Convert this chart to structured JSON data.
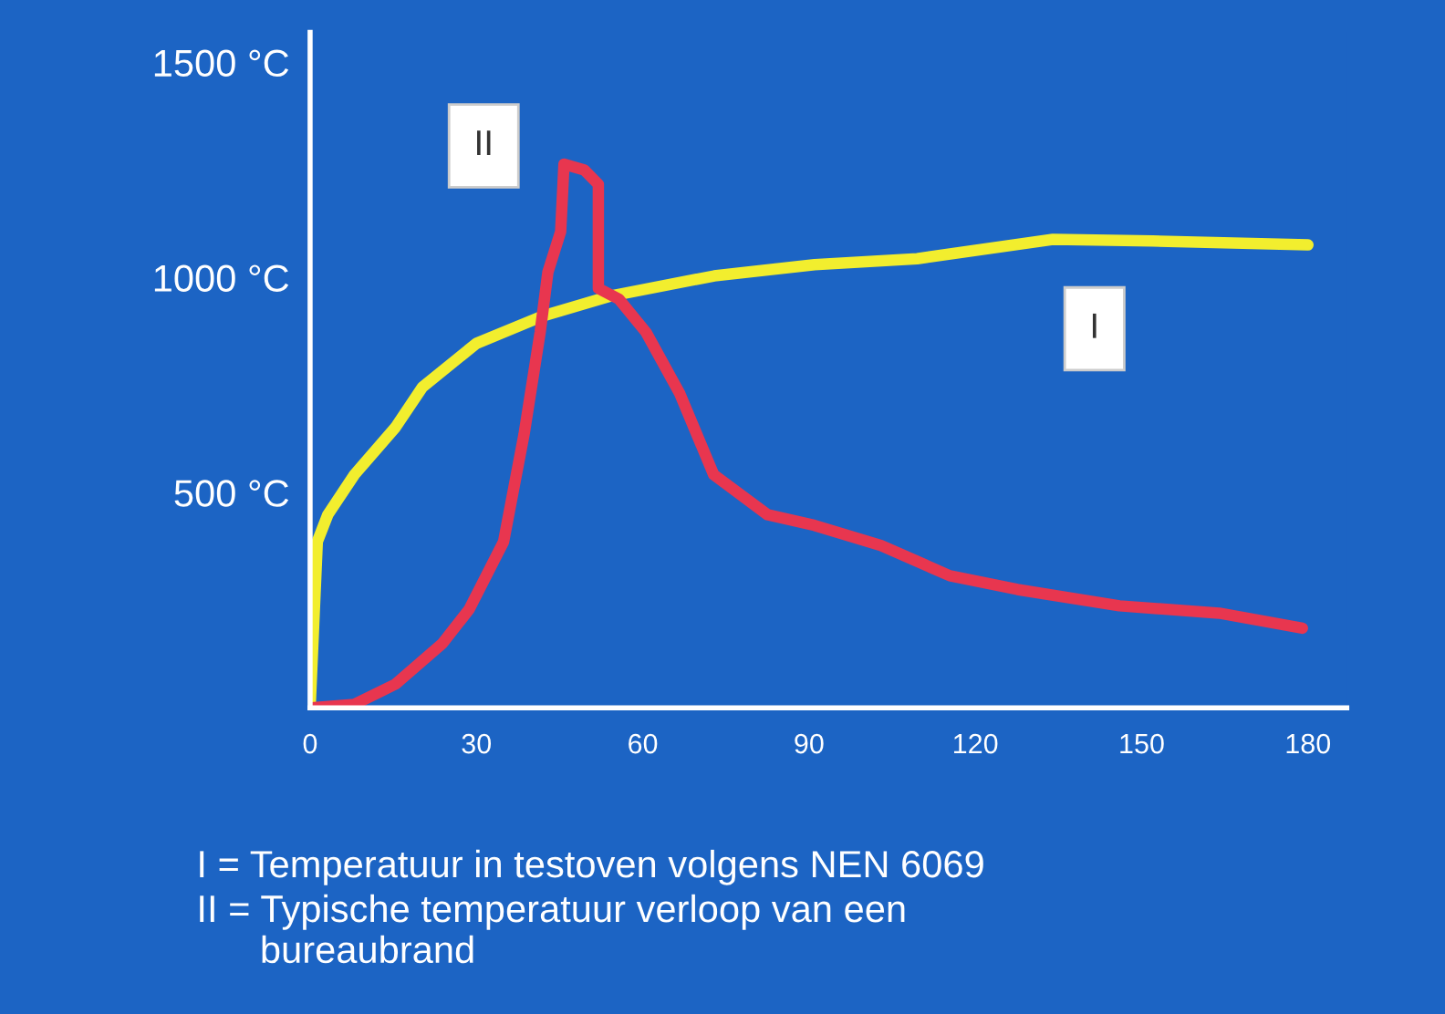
{
  "chart_data": {
    "type": "line",
    "xlim": [
      0,
      187
    ],
    "ylim": [
      0,
      1570
    ],
    "xticks": [
      0,
      30,
      60,
      90,
      120,
      150,
      180
    ],
    "yticks": [
      {
        "value": 500,
        "label": "500 °C"
      },
      {
        "value": 1000,
        "label": "1000 °C"
      },
      {
        "value": 1500,
        "label": "1500 °C"
      }
    ],
    "grid": false,
    "marker": "none",
    "line_style": "solid",
    "series": [
      {
        "name": "I",
        "color": "#f2ee2e",
        "x": [
          0,
          1.3,
          3.2,
          8,
          15.4,
          20.3,
          30,
          42,
          54.4,
          72.9,
          91,
          109.5,
          134,
          152,
          180
        ],
        "values": [
          0,
          386,
          449,
          542,
          652,
          746,
          847,
          911,
          958,
          1004,
          1030,
          1044,
          1089,
          1085,
          1076
        ]
      },
      {
        "name": "II",
        "color": "#e8364f",
        "x": [
          0.2,
          8,
          15.4,
          23.9,
          28.7,
          34.9,
          38.6,
          41.5,
          42.9,
          45.2,
          45.8,
          49.5,
          52,
          52,
          55.7,
          60.6,
          66.7,
          72.8,
          82.5,
          91,
          103,
          115.4,
          127.6,
          146,
          164,
          179
        ],
        "values": [
          0,
          8,
          55,
          150,
          229,
          386,
          636,
          873,
          1013,
          1107,
          1264,
          1250,
          1217,
          975,
          950,
          873,
          730,
          542,
          449,
          424,
          377,
          307,
          275,
          237,
          220,
          185
        ]
      }
    ],
    "annotations": [
      "I = Temperatuur in testoven volgens NEN 6069",
      "II = Typische temperatuur verloop van een\n      bureaubrand"
    ]
  }
}
